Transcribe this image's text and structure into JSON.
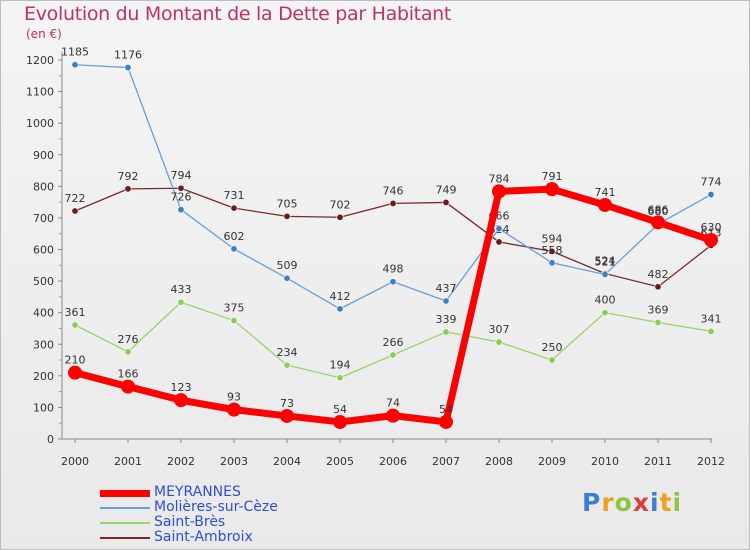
{
  "chart_data": {
    "type": "line",
    "title": "Evolution du Montant de la Dette par Habitant",
    "unit_label": "(en €)",
    "xlabel": "",
    "ylabel": "",
    "categories": [
      "2000",
      "2001",
      "2002",
      "2003",
      "2004",
      "2005",
      "2006",
      "2007",
      "2008",
      "2009",
      "2010",
      "2011",
      "2012"
    ],
    "ylim": [
      0,
      1200
    ],
    "yticks": [
      0,
      100,
      200,
      300,
      400,
      500,
      600,
      700,
      800,
      900,
      1000,
      1100,
      1200
    ],
    "grid": false,
    "legend_position": "bottom-left",
    "series": [
      {
        "name": "Saint-Ambroix",
        "color": "#7a2a2a",
        "point_color": "#6a1c1c",
        "values": [
          722,
          792,
          794,
          731,
          705,
          702,
          746,
          749,
          624,
          594,
          524,
          482,
          613
        ]
      },
      {
        "name": "Molières-sur-Cèze",
        "color": "#6a9fd4",
        "point_color": "#3c7fc2",
        "values": [
          1185,
          1176,
          726,
          602,
          509,
          412,
          498,
          437,
          666,
          558,
          521,
          680,
          774
        ]
      },
      {
        "name": "Saint-Brès",
        "color": "#99d36b",
        "point_color": "#8ccc55",
        "values": [
          361,
          276,
          433,
          375,
          234,
          194,
          266,
          339,
          307,
          250,
          400,
          369,
          341
        ]
      },
      {
        "name": "MEYRANNES",
        "color": "#ff0000",
        "point_color": "#ff0000",
        "values": [
          210,
          166,
          123,
          93,
          73,
          54,
          74,
          54,
          784,
          791,
          741,
          686,
          630
        ]
      }
    ],
    "legend_order": [
      "MEYRANNES",
      "Molières-sur-Cèze",
      "Saint-Brès",
      "Saint-Ambroix"
    ]
  },
  "logo": {
    "text": "Proxiti",
    "colors": [
      "#3a7fd5",
      "#f0a020",
      "#8cc63f",
      "#e03a3a"
    ]
  }
}
